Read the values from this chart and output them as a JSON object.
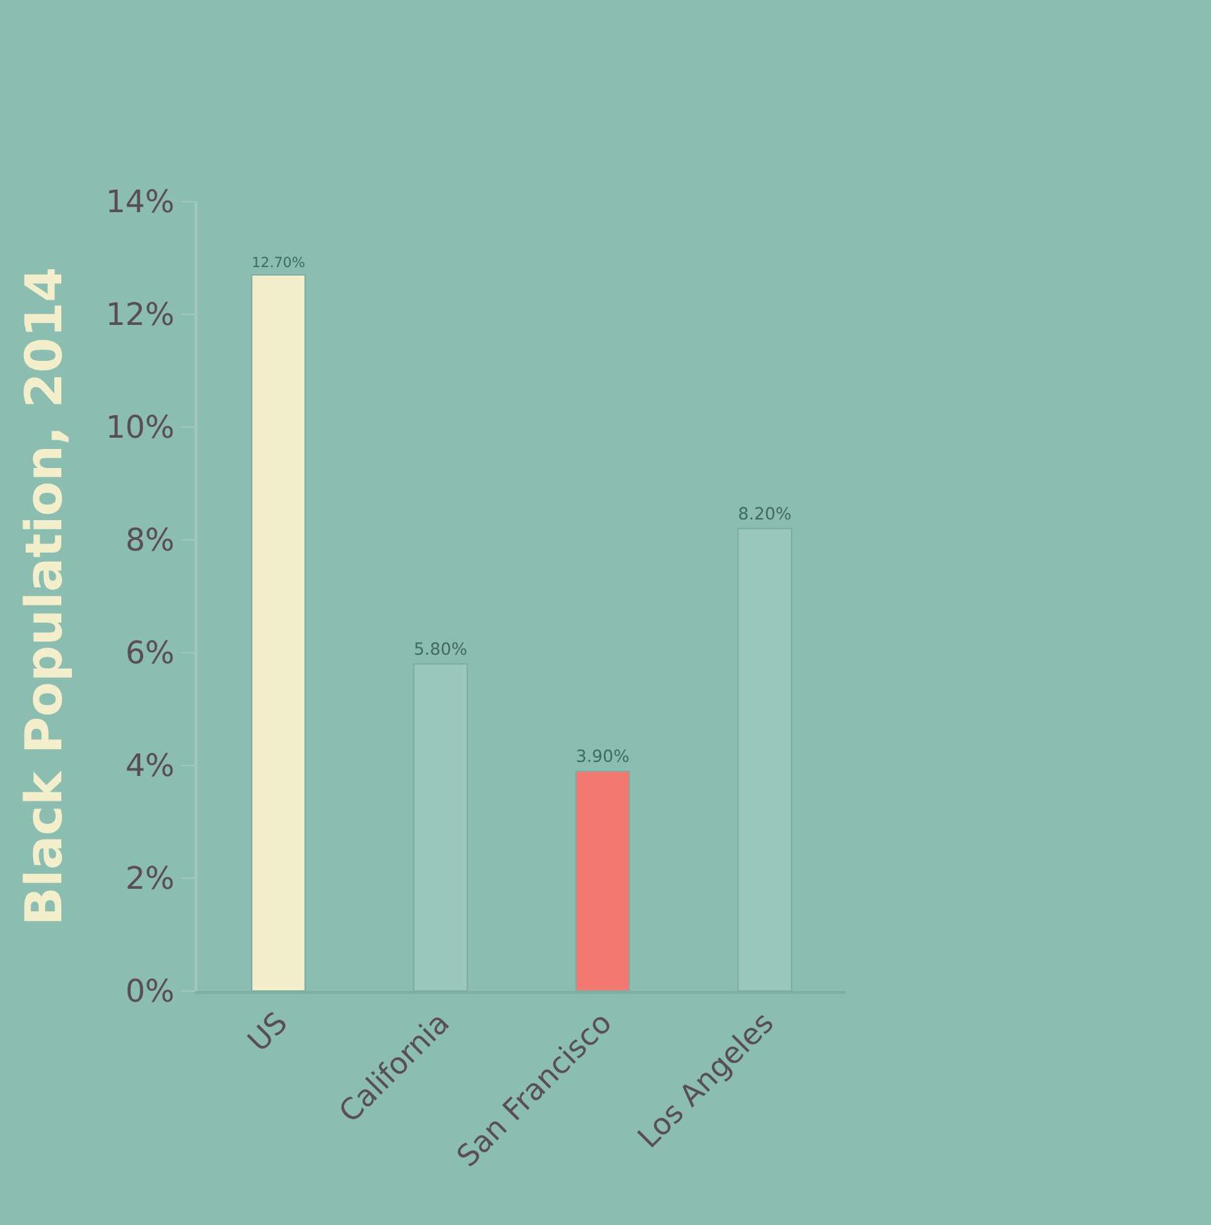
{
  "chart_data": {
    "type": "bar",
    "ylabel": "Black Population, 2014",
    "categories": [
      "US",
      "California",
      "San Francisco",
      "Los Angeles"
    ],
    "values": [
      12.7,
      5.8,
      3.9,
      8.2
    ],
    "colors": [
      "#f3eecb",
      "#9ac8bc",
      "#f37872",
      "#9ac8bc"
    ],
    "value_labels": [
      "12.70%",
      "5.80%",
      "3.90%",
      "8.20%"
    ],
    "ylim": [
      0,
      14
    ],
    "yticks": [
      {
        "value": 0,
        "label": "0%"
      },
      {
        "value": 2,
        "label": "2%"
      },
      {
        "value": 4,
        "label": "4%"
      },
      {
        "value": 6,
        "label": "6%"
      },
      {
        "value": 8,
        "label": "8%"
      },
      {
        "value": 10,
        "label": "10%"
      },
      {
        "value": 12,
        "label": "12%"
      },
      {
        "value": 14,
        "label": "14%"
      }
    ],
    "grid": false,
    "legend": false
  }
}
